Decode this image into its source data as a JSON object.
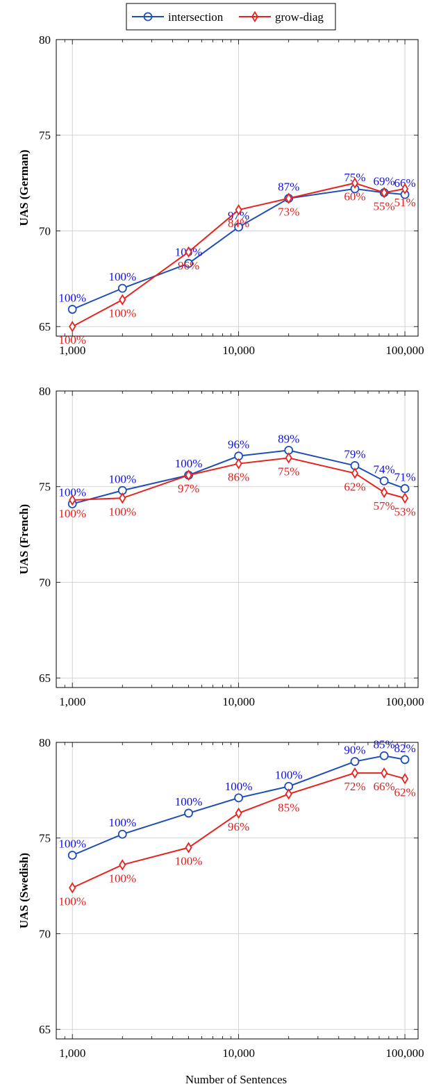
{
  "colors": {
    "intersection": "#1f4fb4",
    "grow_diag": "#e8231e",
    "label_blue": "#1010e0",
    "label_red": "#e02020"
  },
  "legend": {
    "entries": [
      {
        "name": "intersection",
        "marker": "circle",
        "color": "#1f4fb4"
      },
      {
        "name": "grow-diag",
        "marker": "diamond",
        "color": "#e8231e"
      }
    ]
  },
  "xlabel": "Number of Sentences",
  "chart_data": [
    {
      "type": "line",
      "ylabel": "UAS (German)",
      "x_scale": "log",
      "xlim": [
        800,
        120000
      ],
      "ylim": [
        64.5,
        80
      ],
      "x_ticks": [
        1000,
        10000,
        100000
      ],
      "x_tick_labels": [
        "1,000",
        "10,000",
        "100,000"
      ],
      "y_ticks": [
        65,
        70,
        75,
        80
      ],
      "grid": true,
      "series": [
        {
          "name": "intersection",
          "x": [
            1000,
            2000,
            5000,
            10000,
            20000,
            50000,
            75000,
            100000
          ],
          "y": [
            65.9,
            67.0,
            68.3,
            70.2,
            71.7,
            72.2,
            72.0,
            71.9
          ],
          "labels": [
            "100%",
            "100%",
            "100%",
            "97%",
            "87%",
            "75%",
            "69%",
            "66%"
          ]
        },
        {
          "name": "grow-diag",
          "x": [
            1000,
            2000,
            5000,
            10000,
            20000,
            50000,
            75000,
            100000
          ],
          "y": [
            65.0,
            66.4,
            68.9,
            71.1,
            71.7,
            72.5,
            72.0,
            72.2
          ],
          "labels": [
            "100%",
            "100%",
            "96%",
            "84%",
            "73%",
            "60%",
            "55%",
            "51%"
          ]
        }
      ]
    },
    {
      "type": "line",
      "ylabel": "UAS (French)",
      "x_scale": "log",
      "xlim": [
        800,
        120000
      ],
      "ylim": [
        64.5,
        80
      ],
      "x_ticks": [
        1000,
        10000,
        100000
      ],
      "x_tick_labels": [
        "1,000",
        "10,000",
        "100,000"
      ],
      "y_ticks": [
        65,
        70,
        75,
        80
      ],
      "grid": true,
      "series": [
        {
          "name": "intersection",
          "x": [
            1000,
            2000,
            5000,
            10000,
            20000,
            50000,
            75000,
            100000
          ],
          "y": [
            74.1,
            74.8,
            75.6,
            76.6,
            76.9,
            76.1,
            75.3,
            74.9
          ],
          "labels": [
            "100%",
            "100%",
            "100%",
            "96%",
            "89%",
            "79%",
            "74%",
            "71%"
          ]
        },
        {
          "name": "grow-diag",
          "x": [
            1000,
            2000,
            5000,
            10000,
            20000,
            50000,
            75000,
            100000
          ],
          "y": [
            74.3,
            74.4,
            75.6,
            76.2,
            76.5,
            75.7,
            74.7,
            74.4
          ],
          "labels": [
            "100%",
            "100%",
            "97%",
            "86%",
            "75%",
            "62%",
            "57%",
            "53%"
          ]
        }
      ]
    },
    {
      "type": "line",
      "ylabel": "UAS (Swedish)",
      "x_scale": "log",
      "xlim": [
        800,
        120000
      ],
      "ylim": [
        64.5,
        80
      ],
      "x_ticks": [
        1000,
        10000,
        100000
      ],
      "x_tick_labels": [
        "1,000",
        "10,000",
        "100,000"
      ],
      "y_ticks": [
        65,
        70,
        75,
        80
      ],
      "grid": true,
      "series": [
        {
          "name": "intersection",
          "x": [
            1000,
            2000,
            5000,
            10000,
            20000,
            50000,
            75000,
            100000
          ],
          "y": [
            74.1,
            75.2,
            76.3,
            77.1,
            77.7,
            79.0,
            79.3,
            79.1
          ],
          "labels": [
            "100%",
            "100%",
            "100%",
            "100%",
            "100%",
            "90%",
            "85%",
            "82%"
          ]
        },
        {
          "name": "grow-diag",
          "x": [
            1000,
            2000,
            5000,
            10000,
            20000,
            50000,
            75000,
            100000
          ],
          "y": [
            72.4,
            73.6,
            74.5,
            76.3,
            77.3,
            78.4,
            78.4,
            78.1
          ],
          "labels": [
            "100%",
            "100%",
            "100%",
            "96%",
            "85%",
            "72%",
            "66%",
            "62%"
          ]
        }
      ]
    }
  ]
}
